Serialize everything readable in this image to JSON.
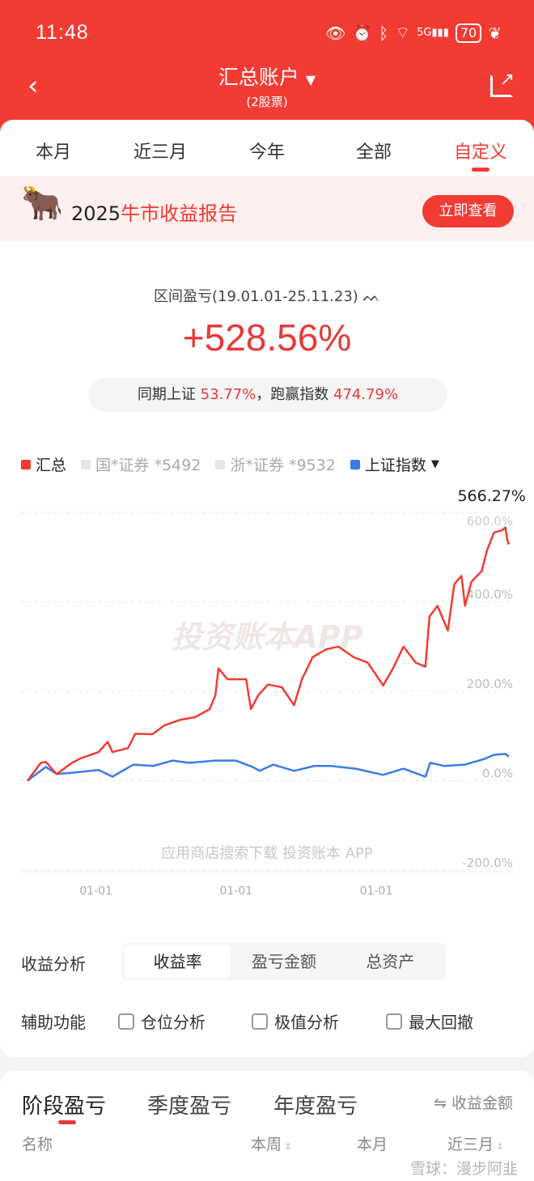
{
  "status_bar": {
    "time": "11:48",
    "battery": "70",
    "icons": [
      "eye-icon",
      "alarm-icon",
      "bluetooth-icon",
      "wifi-icon",
      "signal-5g-icon",
      "battery-icon",
      "leaf-icon"
    ]
  },
  "header": {
    "title": "汇总账户",
    "subtitle": "(2股票)",
    "back_icon": "chevron-left-icon",
    "share_icon": "share-icon"
  },
  "period_tabs": [
    {
      "label": "本月"
    },
    {
      "label": "近三月"
    },
    {
      "label": "今年"
    },
    {
      "label": "全部"
    },
    {
      "label": "自定义",
      "active": true
    }
  ],
  "banner": {
    "year": "2025",
    "text": "牛市收益报告",
    "button": "立即查看"
  },
  "summary": {
    "range_label": "区间盈亏(19.01.01-25.11.23)",
    "return": "+528.56%",
    "cmp_prefix": "同期上证",
    "cmp_index": "53.77%",
    "cmp_mid": "，跑赢指数",
    "cmp_excess": "474.79%"
  },
  "legend": [
    {
      "label": "汇总",
      "color": "#f23b33"
    },
    {
      "label": "国*证券 *5492",
      "color": "#e6e6e6"
    },
    {
      "label": "浙*证券 *9532",
      "color": "#e6e6e6"
    },
    {
      "label": "上证指数",
      "color": "#3b7be8"
    }
  ],
  "chart_data": {
    "type": "line",
    "x_ticks": [
      "2020-01-01",
      "2022-01-01",
      "2024-01-01"
    ],
    "x_tick_labels": [
      "01-01",
      "01-01",
      "01-01"
    ],
    "xlim": [
      "2019-01-01",
      "2025-11-23"
    ],
    "ylim": [
      -200,
      600
    ],
    "y_ticks": [
      600,
      400,
      200,
      0,
      -200
    ],
    "y_tick_labels": [
      "600.0%",
      "400.0%",
      "200.0%",
      "0.0%",
      "-200.0%"
    ],
    "grid": true,
    "max_label": "566.27%",
    "watermark": "投资账本APP",
    "footer_watermark": "应用商店搜索下载 投资账本 APP",
    "series": [
      {
        "name": "汇总",
        "color": "#f23b33",
        "points": [
          [
            "2019-01-09",
            0
          ],
          [
            "2019-03-20",
            40
          ],
          [
            "2019-04-15",
            42
          ],
          [
            "2019-06-10",
            15
          ],
          [
            "2019-08-29",
            40
          ],
          [
            "2019-10-19",
            51
          ],
          [
            "2020-01-15",
            64
          ],
          [
            "2020-03-02",
            87
          ],
          [
            "2020-03-27",
            64
          ],
          [
            "2020-06-16",
            73
          ],
          [
            "2020-07-24",
            105
          ],
          [
            "2020-10-21",
            104
          ],
          [
            "2020-12-23",
            124
          ],
          [
            "2021-03-13",
            136
          ],
          [
            "2021-06-01",
            142
          ],
          [
            "2021-08-16",
            160
          ],
          [
            "2021-09-15",
            191
          ],
          [
            "2021-10-01",
            251
          ],
          [
            "2021-11-17",
            227
          ],
          [
            "2022-02-22",
            227
          ],
          [
            "2022-03-19",
            160
          ],
          [
            "2022-04-26",
            191
          ],
          [
            "2022-06-16",
            215
          ],
          [
            "2022-08-27",
            209
          ],
          [
            "2022-10-30",
            169
          ],
          [
            "2022-12-10",
            227
          ],
          [
            "2023-02-03",
            276
          ],
          [
            "2023-04-16",
            294
          ],
          [
            "2023-06-18",
            300
          ],
          [
            "2023-09-06",
            276
          ],
          [
            "2023-11-17",
            264
          ],
          [
            "2024-02-06",
            213
          ],
          [
            "2024-03-28",
            251
          ],
          [
            "2024-05-22",
            300
          ],
          [
            "2024-07-24",
            264
          ],
          [
            "2024-09-13",
            255
          ],
          [
            "2024-10-04",
            367
          ],
          [
            "2024-11-15",
            391
          ],
          [
            "2025-01-09",
            336
          ],
          [
            "2025-02-12",
            440
          ],
          [
            "2025-03-21",
            458
          ],
          [
            "2025-04-08",
            391
          ],
          [
            "2025-05-12",
            445
          ],
          [
            "2025-07-05",
            469
          ],
          [
            "2025-07-30",
            513
          ],
          [
            "2025-09-06",
            555
          ],
          [
            "2025-10-18",
            560
          ],
          [
            "2025-11-04",
            566.27
          ],
          [
            "2025-11-16",
            536
          ],
          [
            "2025-11-23",
            528.56
          ]
        ]
      },
      {
        "name": "上证指数",
        "color": "#3b7be8",
        "points": [
          [
            "2019-01-09",
            0
          ],
          [
            "2019-04-15",
            31
          ],
          [
            "2019-06-10",
            15
          ],
          [
            "2019-08-29",
            18
          ],
          [
            "2020-01-15",
            24
          ],
          [
            "2020-03-27",
            9
          ],
          [
            "2020-07-14",
            36
          ],
          [
            "2020-10-25",
            33
          ],
          [
            "2021-02-04",
            45
          ],
          [
            "2021-05-02",
            40
          ],
          [
            "2021-09-15",
            45
          ],
          [
            "2021-12-30",
            45
          ],
          [
            "2022-03-27",
            31
          ],
          [
            "2022-05-04",
            22
          ],
          [
            "2022-07-13",
            36
          ],
          [
            "2022-10-30",
            22
          ],
          [
            "2023-02-11",
            33
          ],
          [
            "2023-05-09",
            33
          ],
          [
            "2023-09-15",
            27
          ],
          [
            "2024-02-06",
            13
          ],
          [
            "2024-05-22",
            27
          ],
          [
            "2024-09-13",
            9
          ],
          [
            "2024-10-08",
            40
          ],
          [
            "2024-12-21",
            33
          ],
          [
            "2025-04-08",
            36
          ],
          [
            "2025-07-21",
            49
          ],
          [
            "2025-09-06",
            58
          ],
          [
            "2025-11-04",
            60
          ],
          [
            "2025-11-23",
            53.77
          ]
        ]
      }
    ]
  },
  "analysis": {
    "label": "收益分析",
    "options": [
      "收益率",
      "盈亏金额",
      "总资产"
    ],
    "selected": "收益率"
  },
  "aux": {
    "label": "辅助功能",
    "options": [
      {
        "label": "仓位分析",
        "checked": false
      },
      {
        "label": "极值分析",
        "checked": false
      },
      {
        "label": "最大回撤",
        "checked": false
      }
    ]
  },
  "period_pnl": {
    "tabs": [
      "阶段盈亏",
      "季度盈亏",
      "年度盈亏"
    ],
    "toggle": "⇋ 收益金额",
    "columns": [
      "名称",
      "本周",
      "本月",
      "近三月"
    ]
  },
  "watermark": "雪球：漫步阿韭"
}
